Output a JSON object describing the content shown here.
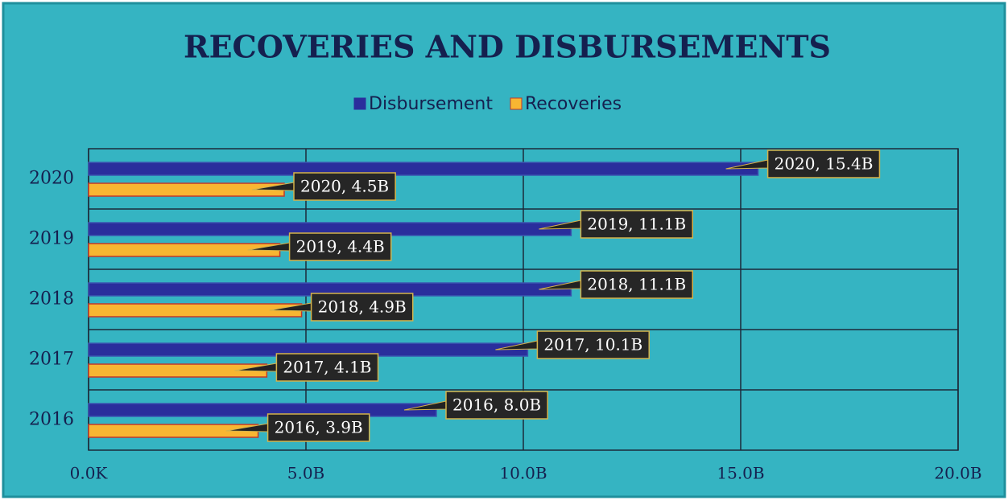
{
  "chart_data": {
    "type": "bar",
    "orientation": "horizontal",
    "title": "RECOVERIES AND DISBURSEMENTS",
    "categories": [
      "2016",
      "2017",
      "2018",
      "2019",
      "2020"
    ],
    "series": [
      {
        "name": "Disbursement",
        "color": "#2a2e9c",
        "values": [
          8.0,
          10.1,
          11.1,
          11.1,
          15.4
        ],
        "value_labels": [
          "2016, 8.0B",
          "2017, 10.1B",
          "2018, 11.1B",
          "2019, 11.1B",
          "2020, 15.4B"
        ]
      },
      {
        "name": "Recoveries",
        "color": "#f8b632",
        "values": [
          3.9,
          4.1,
          4.9,
          4.4,
          4.5
        ],
        "value_labels": [
          "2016, 3.9B",
          "2017, 4.1B",
          "2018, 4.9B",
          "2019, 4.4B",
          "2020, 4.5B"
        ]
      }
    ],
    "xlim": [
      0,
      20
    ],
    "xticks": [
      {
        "value": 0,
        "label": "0.0K"
      },
      {
        "value": 5,
        "label": "5.0B"
      },
      {
        "value": 10,
        "label": "10.0B"
      },
      {
        "value": 15,
        "label": "15.0B"
      },
      {
        "value": 20,
        "label": "20.0B"
      }
    ],
    "grid": true,
    "legend": "top"
  }
}
